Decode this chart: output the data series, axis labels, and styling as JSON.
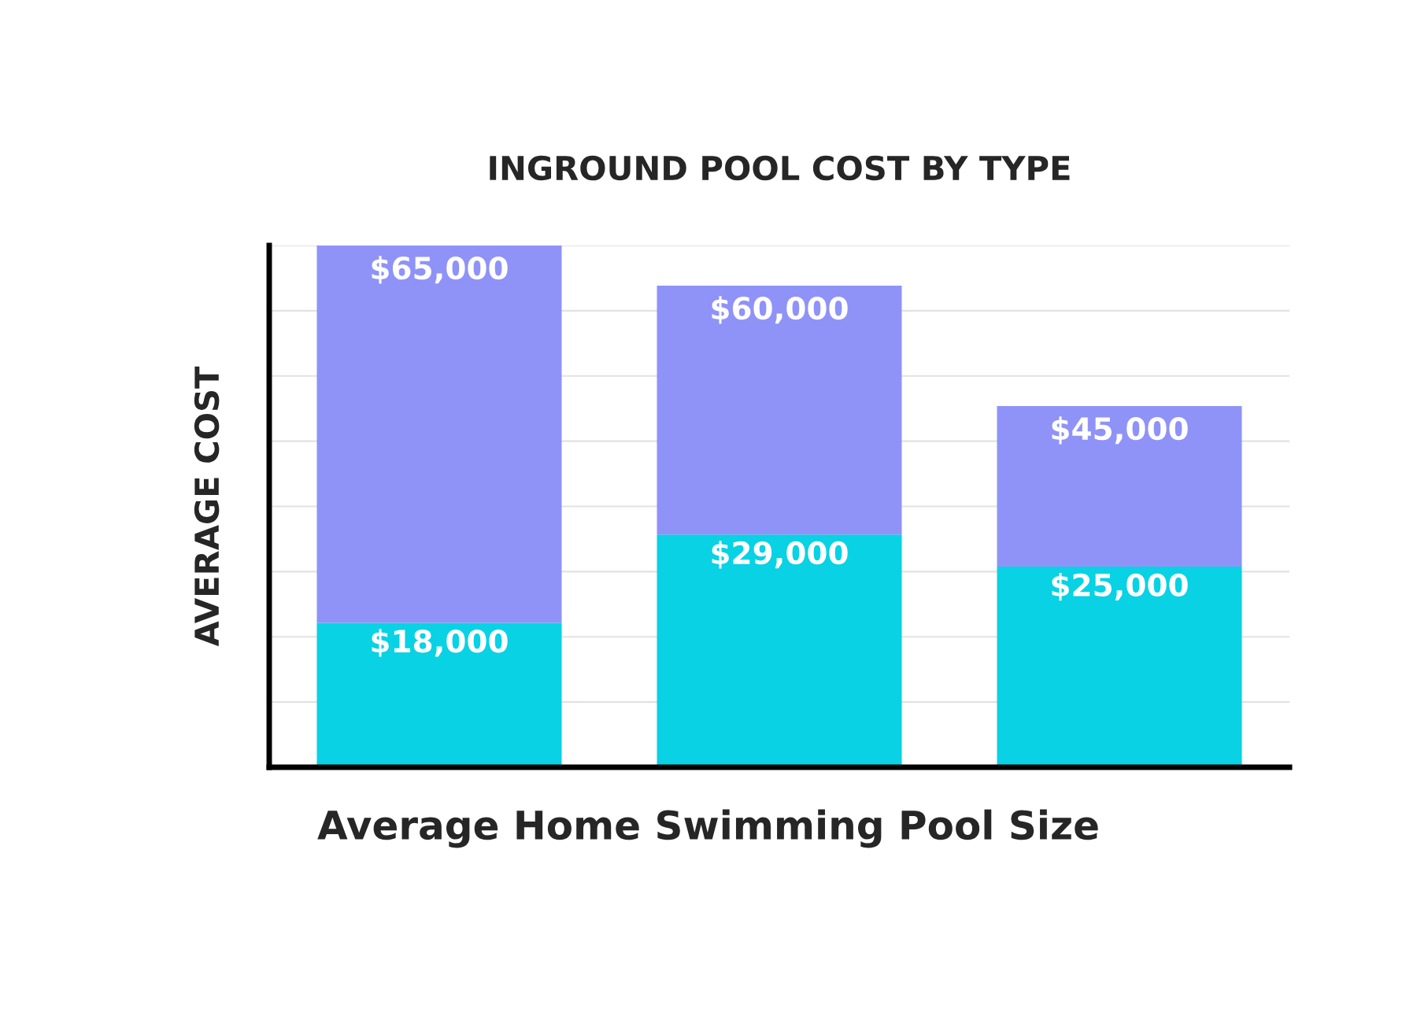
{
  "chart_data": {
    "type": "bar",
    "title": "INGROUND POOL COST BY TYPE",
    "ylabel": "AVERAGE COST",
    "categories": [
      null,
      null,
      null
    ],
    "stacked": true,
    "series": [
      {
        "color": "#08d2e4",
        "values": [
          18000,
          29000,
          25000
        ],
        "value_labels": [
          "$18,000",
          "$29,000",
          "$25,000"
        ]
      },
      {
        "color": "#8f93f7",
        "values": [
          47000,
          31000,
          20000
        ]
      }
    ],
    "totals": [
      "$65,000",
      "$60,000",
      "$45,000"
    ],
    "ylim": [
      0,
      65000
    ],
    "yticks": [
      {
        "value": 0,
        "label": null
      },
      {
        "value": 8125,
        "label": null
      },
      {
        "value": 16250,
        "label": null
      },
      {
        "value": 24375,
        "label": null
      },
      {
        "value": 32500,
        "label": null
      },
      {
        "value": 40625,
        "label": null
      },
      {
        "value": 48750,
        "label": null
      },
      {
        "value": 56875,
        "label": null
      },
      {
        "value": 65000,
        "label": null
      }
    ],
    "tick_labels": false,
    "grid": "y",
    "annotations": [
      "Average Home Swimming Pool Size"
    ]
  }
}
